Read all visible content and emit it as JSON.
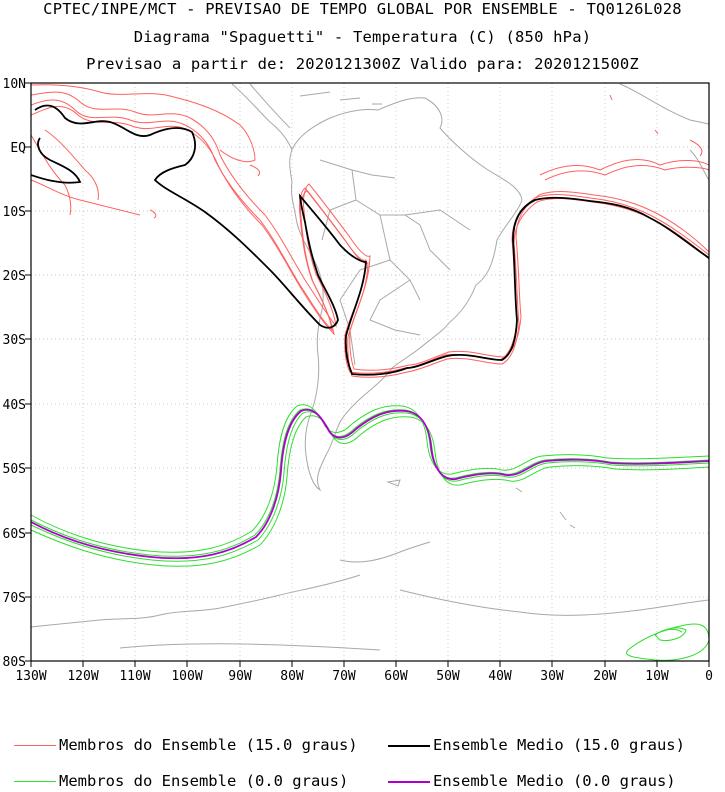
{
  "header": {
    "line1": "CPTEC/INPE/MCT - PREVISAO DE TEMPO GLOBAL POR ENSEMBLE - TQ0126L028",
    "line2": "Diagrama \"Spaguetti\" - Temperatura (C) (850 hPa)",
    "line3": "Previsao a partir de: 2020121300Z  Valido para: 2020121500Z"
  },
  "map": {
    "lat_labels": [
      "10N",
      "EQ",
      "10S",
      "20S",
      "30S",
      "40S",
      "50S",
      "60S",
      "70S",
      "80S"
    ],
    "lon_labels": [
      "130W",
      "120W",
      "110W",
      "100W",
      "90W",
      "80W",
      "70W",
      "60W",
      "50W",
      "40W",
      "30W",
      "20W",
      "10W",
      "0"
    ],
    "extent": {
      "lon_min": -130,
      "lon_max": 0,
      "lat_min": -80,
      "lat_max": 10
    }
  },
  "legend": {
    "items": [
      {
        "label": "Membros do Ensemble (15.0 graus)",
        "color": "#ff6060"
      },
      {
        "label": "Ensemble Medio (15.0 graus)",
        "color": "#000000"
      },
      {
        "label": "Membros do Ensemble (0.0 graus)",
        "color": "#30dd30"
      },
      {
        "label": "Ensemble Medio (0.0 graus)",
        "color": "#b000d0"
      }
    ]
  }
}
